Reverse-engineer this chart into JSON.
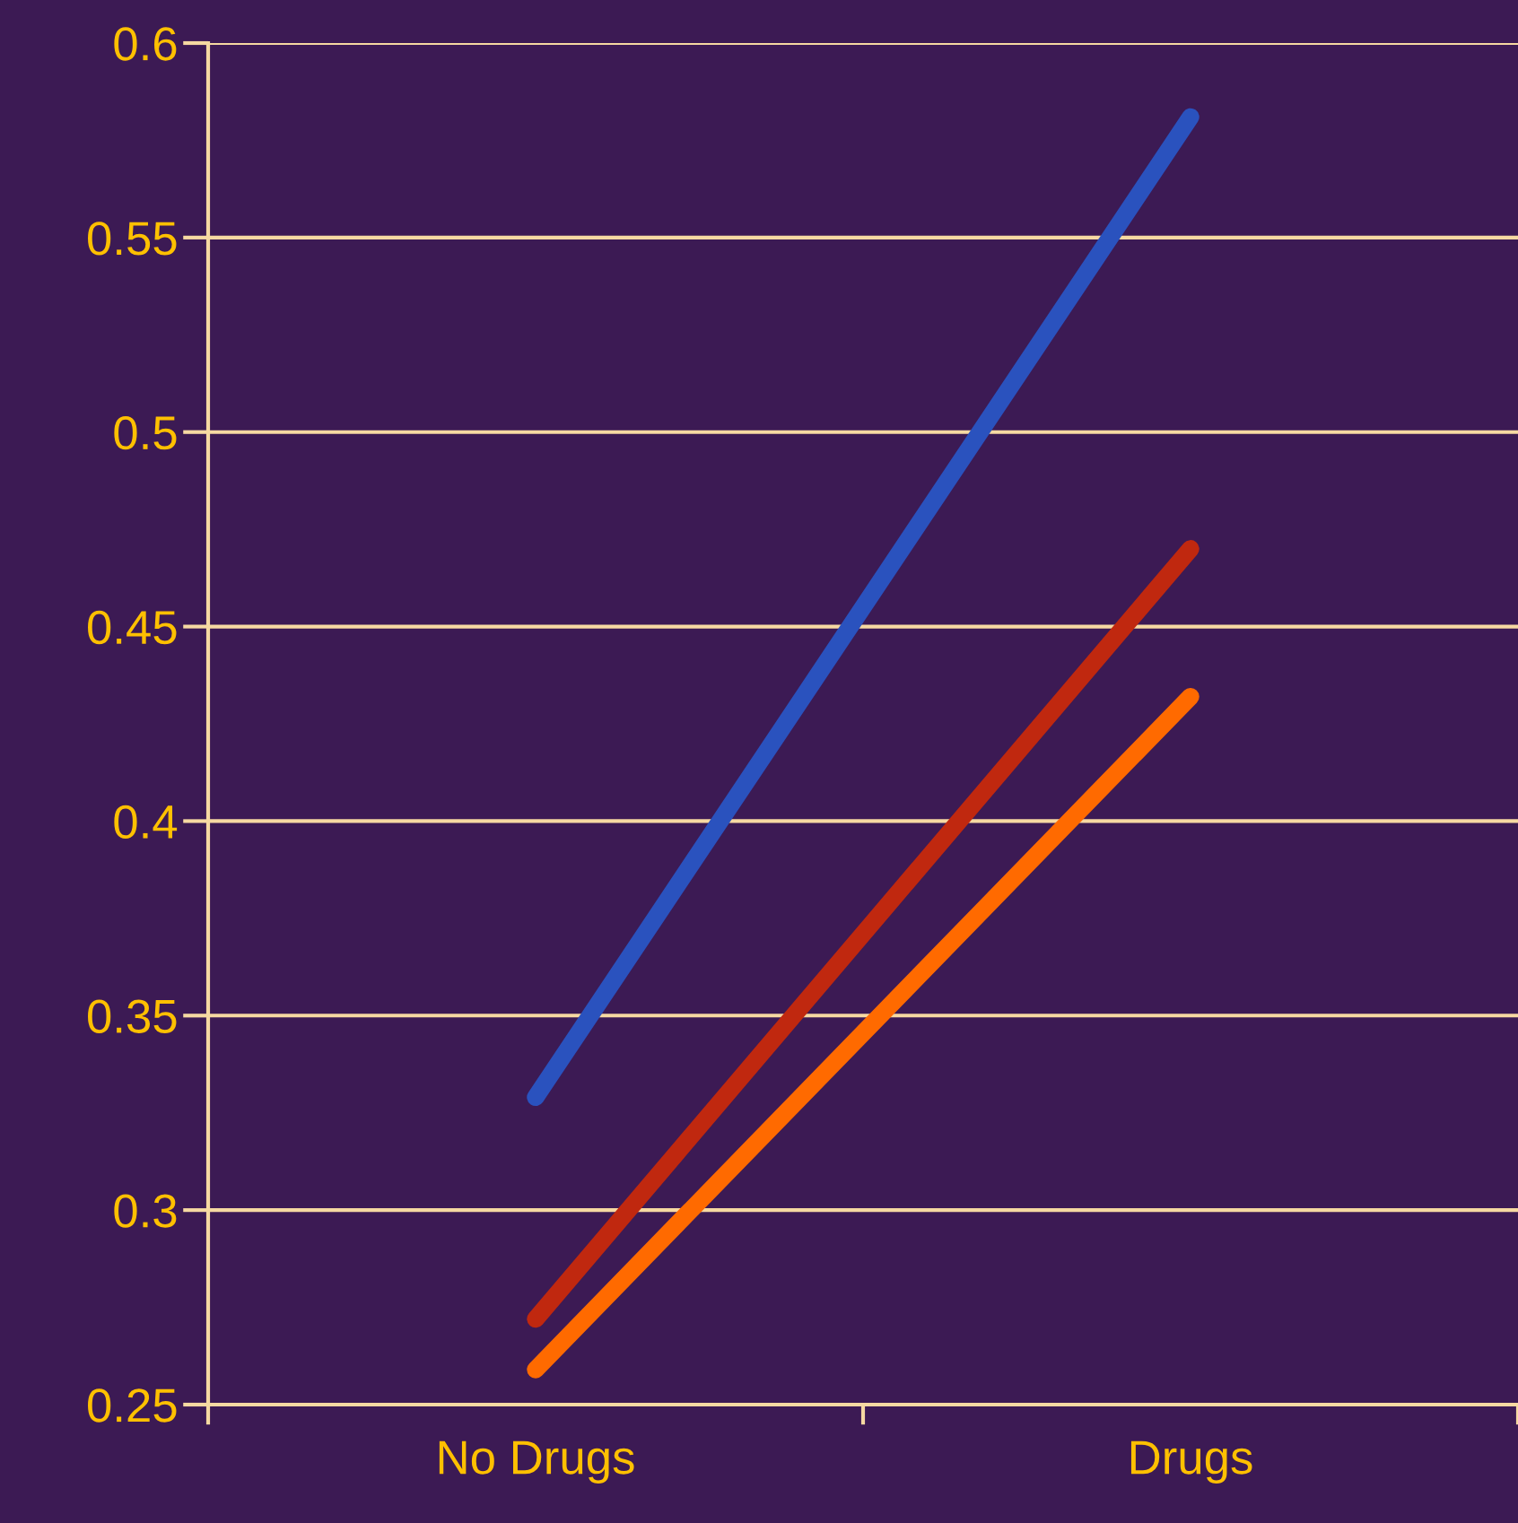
{
  "chart_data": {
    "type": "line",
    "categories": [
      "No Drugs",
      "Drugs"
    ],
    "series": [
      {
        "color": "#2a52be",
        "values": [
          0.329,
          0.581
        ]
      },
      {
        "color": "#c0280f",
        "values": [
          0.272,
          0.47
        ]
      },
      {
        "color": "#ff6a00",
        "values": [
          0.259,
          0.432
        ]
      }
    ],
    "ylim": [
      0.25,
      0.6
    ],
    "yticks": [
      0.25,
      0.3,
      0.35,
      0.4,
      0.45,
      0.5,
      0.55,
      0.6
    ],
    "grid": "y",
    "marker": "none",
    "line_style": "solid"
  }
}
